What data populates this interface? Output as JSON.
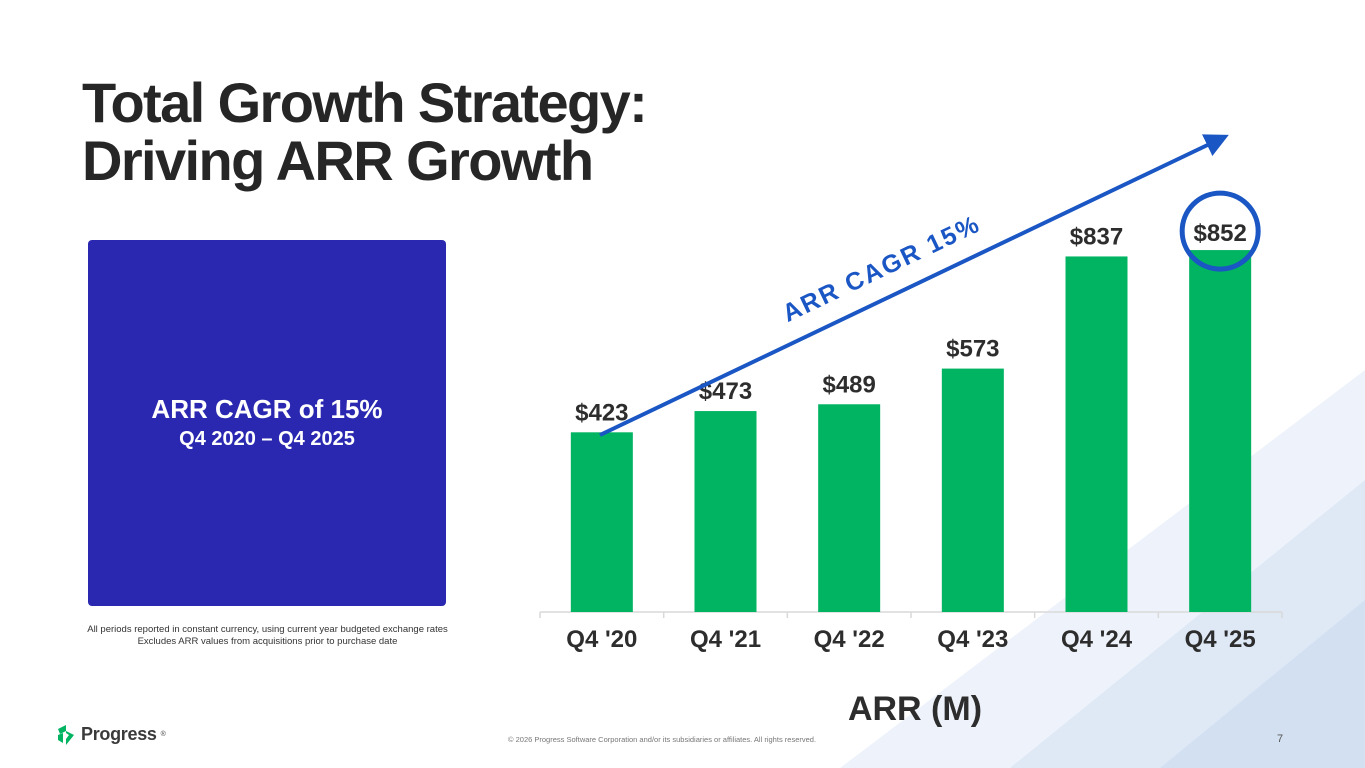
{
  "slide": {
    "title_line1": "Total Growth Strategy:",
    "title_line2": "Driving ARR Growth",
    "page_number": "7",
    "copyright": "© 2026 Progress Software Corporation and/or its subsidiaries or affiliates. All rights reserved.",
    "logo_text": "Progress",
    "logo_mark": "®"
  },
  "cagr_box": {
    "headline": "ARR CAGR of 15%",
    "period": "Q4 2020 – Q4 2025",
    "color": "#2a28b0"
  },
  "footnotes": [
    "All periods reported in constant currency, using current year budgeted exchange rates",
    "Excludes ARR values from acquisitions prior to purchase date"
  ],
  "chart_data": {
    "type": "bar",
    "categories": [
      "Q4 '20",
      "Q4 '21",
      "Q4 '22",
      "Q4 '23",
      "Q4 '24",
      "Q4 '25"
    ],
    "values": [
      423,
      473,
      489,
      573,
      837,
      852
    ],
    "data_labels": [
      "$423",
      "$473",
      "$489",
      "$573",
      "$837",
      "$852"
    ],
    "title": "",
    "xlabel": "ARR (M)",
    "ylabel": "",
    "ylim": [
      0,
      900
    ],
    "bar_color": "#00b462",
    "highlight_index": 5,
    "highlight_color": "#1a56c4",
    "trend_arrow_label": "ARR CAGR 15%",
    "trend_arrow_color": "#1a56c4"
  }
}
